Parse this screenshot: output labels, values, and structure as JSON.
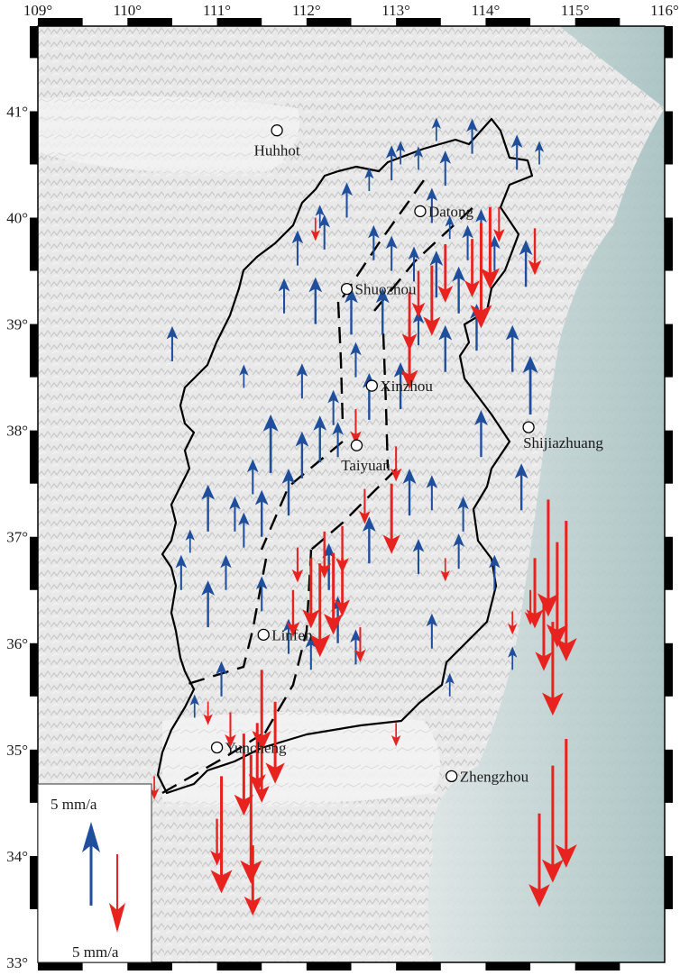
{
  "axes": {
    "lon_ticks": [
      {
        "value": 109,
        "label": "109°"
      },
      {
        "value": 110,
        "label": "110°"
      },
      {
        "value": 111,
        "label": "111°"
      },
      {
        "value": 112,
        "label": "112°"
      },
      {
        "value": 113,
        "label": "113°"
      },
      {
        "value": 114,
        "label": "114°"
      },
      {
        "value": 115,
        "label": "115°"
      },
      {
        "value": 116,
        "label": "116°"
      }
    ],
    "lat_ticks": [
      {
        "value": 41,
        "label": "41°"
      },
      {
        "value": 40,
        "label": "40°"
      },
      {
        "value": 39,
        "label": "39°"
      },
      {
        "value": 38,
        "label": "38°"
      },
      {
        "value": 37,
        "label": "37°"
      },
      {
        "value": 36,
        "label": "36°"
      },
      {
        "value": 35,
        "label": "35°"
      },
      {
        "value": 34,
        "label": "34°"
      },
      {
        "value": 33,
        "label": "33°"
      }
    ],
    "lon_range": [
      109,
      116
    ],
    "lat_range": [
      33,
      41.8
    ]
  },
  "cities": [
    {
      "name": "Huhhot",
      "lon": 111.67,
      "lat": 40.82
    },
    {
      "name": "Datong",
      "lon": 113.27,
      "lat": 40.06
    },
    {
      "name": "Shuozhou",
      "lon": 112.45,
      "lat": 39.33
    },
    {
      "name": "Xinzhou",
      "lon": 112.73,
      "lat": 38.42
    },
    {
      "name": "Taiyuan",
      "lon": 112.56,
      "lat": 37.86
    },
    {
      "name": "Shijiazhuang",
      "lon": 114.48,
      "lat": 38.03
    },
    {
      "name": "Linfen",
      "lon": 111.52,
      "lat": 36.08
    },
    {
      "name": "Yuncheng",
      "lon": 111.0,
      "lat": 35.02
    },
    {
      "name": "Zhengzhou",
      "lon": 113.62,
      "lat": 34.75
    }
  ],
  "legend": {
    "up_label": "5 mm/a",
    "down_label": "5 mm/a",
    "up_color": "#1f4e9c",
    "down_color": "#e8231f"
  },
  "vectors": {
    "up": [
      [
        113.45,
        40.72,
        2
      ],
      [
        113.85,
        40.6,
        3
      ],
      [
        113.05,
        40.5,
        2
      ],
      [
        113.25,
        40.45,
        2
      ],
      [
        112.95,
        40.35,
        3
      ],
      [
        113.55,
        40.3,
        3
      ],
      [
        114.35,
        40.45,
        3
      ],
      [
        114.6,
        40.5,
        2
      ],
      [
        112.7,
        40.25,
        2
      ],
      [
        112.45,
        40.0,
        3
      ],
      [
        112.15,
        39.9,
        2
      ],
      [
        111.9,
        39.55,
        3
      ],
      [
        112.2,
        39.7,
        3
      ],
      [
        113.4,
        39.95,
        3
      ],
      [
        113.6,
        39.8,
        2
      ],
      [
        113.8,
        39.6,
        3
      ],
      [
        114.1,
        39.5,
        3
      ],
      [
        114.45,
        39.35,
        4
      ],
      [
        113.95,
        39.75,
        3
      ],
      [
        112.75,
        39.6,
        3
      ],
      [
        112.95,
        39.5,
        3
      ],
      [
        113.2,
        39.4,
        3
      ],
      [
        113.45,
        39.25,
        4
      ],
      [
        113.7,
        39.1,
        4
      ],
      [
        111.75,
        39.1,
        3
      ],
      [
        112.1,
        39.0,
        4
      ],
      [
        112.5,
        38.9,
        4
      ],
      [
        112.85,
        38.9,
        4
      ],
      [
        113.25,
        38.8,
        3
      ],
      [
        113.9,
        38.75,
        4
      ],
      [
        114.3,
        38.55,
        4
      ],
      [
        113.55,
        38.55,
        4
      ],
      [
        112.55,
        38.5,
        3
      ],
      [
        113.05,
        38.2,
        4
      ],
      [
        112.7,
        38.1,
        4
      ],
      [
        112.3,
        38.05,
        3
      ],
      [
        111.95,
        38.3,
        3
      ],
      [
        110.5,
        38.65,
        3
      ],
      [
        111.3,
        38.4,
        2
      ],
      [
        114.5,
        38.15,
        5
      ],
      [
        113.95,
        37.75,
        4
      ],
      [
        112.15,
        37.7,
        4
      ],
      [
        112.35,
        37.75,
        3
      ],
      [
        111.95,
        37.55,
        4
      ],
      [
        111.6,
        37.6,
        5
      ],
      [
        111.4,
        37.4,
        3
      ],
      [
        111.8,
        37.2,
        4
      ],
      [
        111.2,
        37.05,
        3
      ],
      [
        110.9,
        37.05,
        4
      ],
      [
        111.5,
        37.0,
        4
      ],
      [
        113.15,
        37.2,
        4
      ],
      [
        113.4,
        37.25,
        3
      ],
      [
        114.4,
        37.25,
        4
      ],
      [
        113.75,
        37.05,
        3
      ],
      [
        111.3,
        36.9,
        3
      ],
      [
        110.7,
        36.85,
        2
      ],
      [
        112.7,
        36.75,
        4
      ],
      [
        113.25,
        36.65,
        3
      ],
      [
        113.7,
        36.7,
        3
      ],
      [
        114.1,
        36.5,
        3
      ],
      [
        111.1,
        36.5,
        3
      ],
      [
        110.6,
        36.5,
        3
      ],
      [
        110.9,
        36.15,
        4
      ],
      [
        111.5,
        36.3,
        3
      ],
      [
        112.25,
        36.5,
        4
      ],
      [
        112.35,
        36.0,
        4
      ],
      [
        111.8,
        35.9,
        3
      ],
      [
        112.05,
        35.75,
        3
      ],
      [
        113.4,
        35.95,
        3
      ],
      [
        112.55,
        35.8,
        3
      ],
      [
        114.3,
        35.75,
        2
      ],
      [
        113.6,
        35.5,
        2
      ],
      [
        111.05,
        35.5,
        3
      ],
      [
        110.75,
        35.3,
        2
      ]
    ],
    "down": [
      [
        114.05,
        40.1,
        7
      ],
      [
        113.95,
        39.95,
        9
      ],
      [
        113.85,
        39.8,
        5
      ],
      [
        113.55,
        39.75,
        5
      ],
      [
        113.25,
        39.5,
        4
      ],
      [
        113.15,
        39.3,
        5
      ],
      [
        113.4,
        39.55,
        6
      ],
      [
        114.55,
        39.9,
        4
      ],
      [
        112.1,
        40.0,
        2
      ],
      [
        114.15,
        40.1,
        3
      ],
      [
        113.15,
        39.05,
        6
      ],
      [
        112.55,
        38.2,
        3
      ],
      [
        113.0,
        37.85,
        3
      ],
      [
        112.95,
        37.5,
        6
      ],
      [
        112.65,
        37.45,
        3
      ],
      [
        112.4,
        37.1,
        4
      ],
      [
        112.2,
        37.05,
        4
      ],
      [
        111.9,
        36.9,
        3
      ],
      [
        112.05,
        36.8,
        6
      ],
      [
        112.15,
        36.75,
        8
      ],
      [
        112.3,
        36.85,
        7
      ],
      [
        112.4,
        36.8,
        5
      ],
      [
        113.55,
        36.8,
        2
      ],
      [
        114.3,
        36.3,
        2
      ],
      [
        114.5,
        36.5,
        3
      ],
      [
        114.8,
        36.95,
        9
      ],
      [
        114.9,
        37.15,
        12
      ],
      [
        114.7,
        37.35,
        10
      ],
      [
        114.55,
        36.8,
        6
      ],
      [
        114.65,
        36.4,
        6
      ],
      [
        114.75,
        36.2,
        8
      ],
      [
        112.6,
        36.15,
        3
      ],
      [
        111.85,
        36.5,
        4
      ],
      [
        111.5,
        35.75,
        7
      ],
      [
        111.65,
        35.45,
        7
      ],
      [
        111.3,
        35.15,
        7
      ],
      [
        111.45,
        35.25,
        6
      ],
      [
        111.5,
        35.05,
        5
      ],
      [
        110.9,
        35.45,
        2
      ],
      [
        111.15,
        35.35,
        3
      ],
      [
        110.3,
        34.75,
        2
      ],
      [
        111.05,
        34.75,
        10
      ],
      [
        111.38,
        34.95,
        11
      ],
      [
        114.9,
        35.1,
        11
      ],
      [
        114.75,
        34.85,
        10
      ],
      [
        114.6,
        34.4,
        8
      ],
      [
        111.4,
        34.1,
        6
      ],
      [
        113.0,
        35.25,
        2
      ],
      [
        111.0,
        34.35,
        4
      ]
    ]
  }
}
